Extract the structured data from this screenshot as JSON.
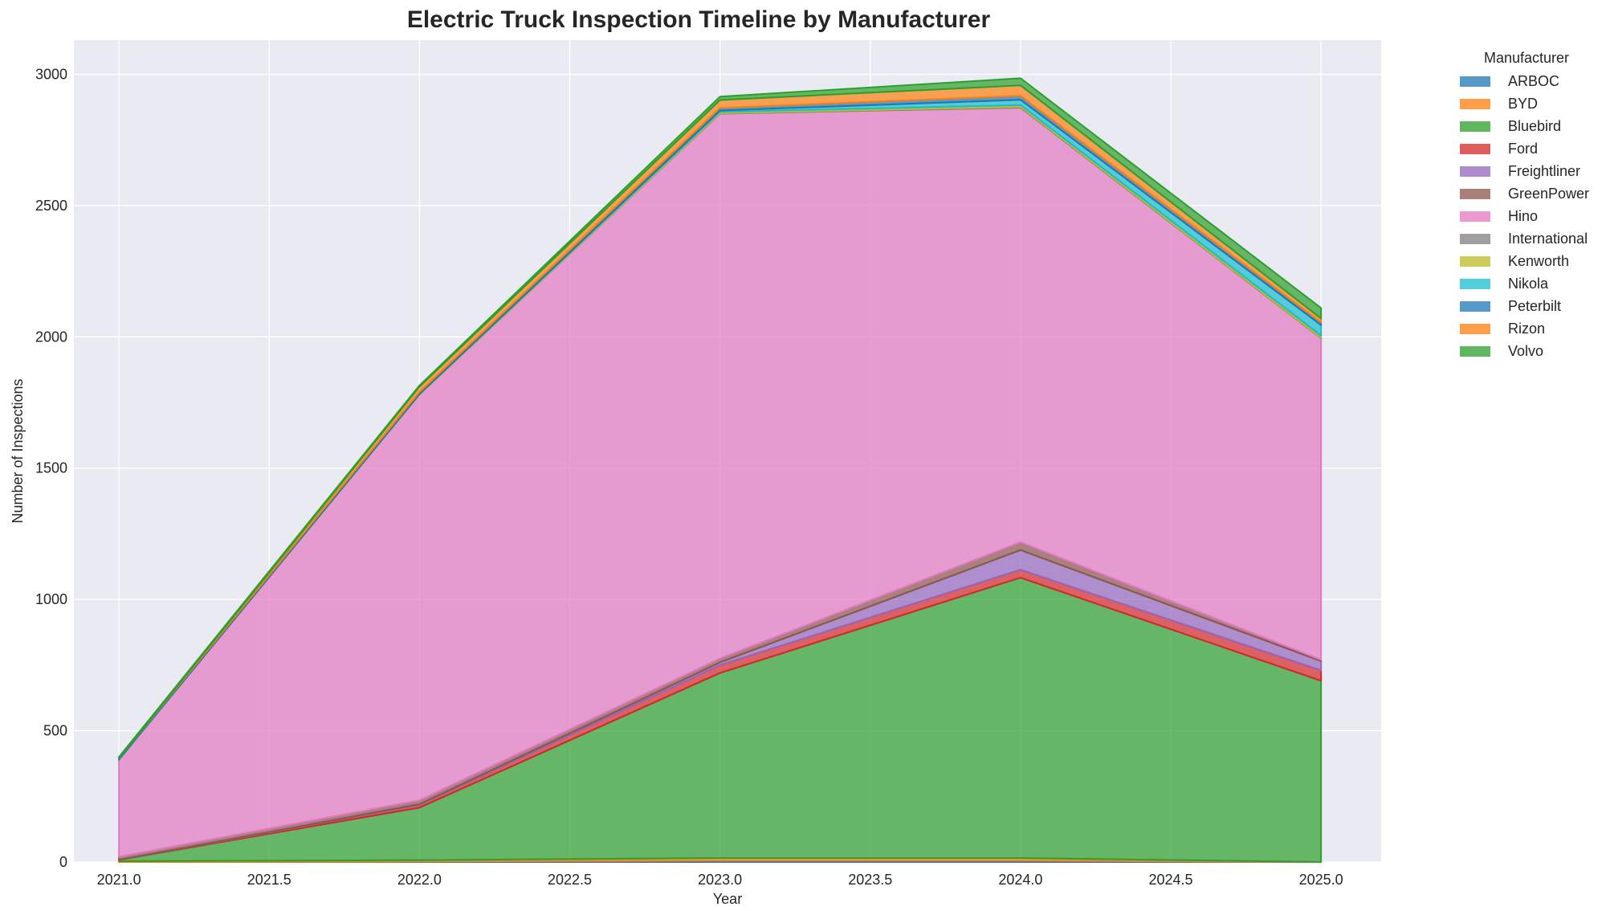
{
  "chart_data": {
    "type": "area",
    "stacked": true,
    "title": "Electric Truck Inspection Timeline by Manufacturer",
    "xlabel": "Year",
    "ylabel": "Number of Inspections",
    "x": [
      2021,
      2022,
      2023,
      2024,
      2025
    ],
    "xticks": [
      "2021.0",
      "2021.5",
      "2022.0",
      "2022.5",
      "2023.0",
      "2023.5",
      "2024.0",
      "2024.5",
      "2025.0"
    ],
    "yticks": [
      "0",
      "500",
      "1000",
      "1500",
      "2000",
      "2500",
      "3000"
    ],
    "xlim": [
      2020.85,
      2025.2
    ],
    "ylim": [
      0,
      3130
    ],
    "grid": true,
    "legend_title": "Manufacturer",
    "legend_position": "outside right, upper",
    "series": [
      {
        "name": "ARBOC",
        "color": "#1f77b4",
        "values": [
          0,
          2,
          5,
          5,
          0
        ]
      },
      {
        "name": "BYD",
        "color": "#ff7f0e",
        "values": [
          3,
          5,
          10,
          10,
          0
        ]
      },
      {
        "name": "Bluebird",
        "color": "#2ca02c",
        "values": [
          5,
          200,
          705,
          1068,
          690
        ]
      },
      {
        "name": "Ford",
        "color": "#d62728",
        "values": [
          0,
          10,
          30,
          30,
          40
        ]
      },
      {
        "name": "Freightliner",
        "color": "#9467bd",
        "values": [
          0,
          3,
          10,
          75,
          35
        ]
      },
      {
        "name": "GreenPower",
        "color": "#8c564b",
        "values": [
          12,
          15,
          15,
          30,
          5
        ]
      },
      {
        "name": "Hino",
        "color": "#e377c2",
        "values": [
          370,
          1545,
          2075,
          1655,
          1225
        ]
      },
      {
        "name": "International",
        "color": "#7f7f7f",
        "values": [
          0,
          0,
          2,
          3,
          2
        ]
      },
      {
        "name": "Kenworth",
        "color": "#bcbd22",
        "values": [
          0,
          2,
          5,
          7,
          8
        ]
      },
      {
        "name": "Nikola",
        "color": "#17becf",
        "values": [
          0,
          0,
          5,
          20,
          40
        ]
      },
      {
        "name": "Peterbilt",
        "color": "#1f77b4",
        "values": [
          5,
          8,
          10,
          15,
          10
        ]
      },
      {
        "name": "Rizon",
        "color": "#ff7f0e",
        "values": [
          0,
          20,
          30,
          40,
          15
        ]
      },
      {
        "name": "Volvo",
        "color": "#2ca02c",
        "values": [
          5,
          5,
          13,
          27,
          40
        ]
      }
    ]
  }
}
